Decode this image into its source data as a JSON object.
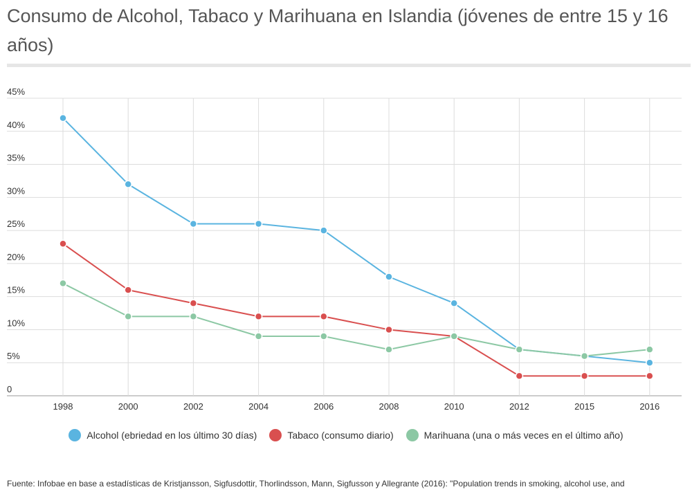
{
  "title": "Consumo de Alcohol, Tabaco y Marihuana en Islandia (jóvenes de entre 15 y 16 años)",
  "footer": "Fuente: Infobae en base a estadísticas de Kristjansson,  Sigfusdottir, Thorlindsson, Mann, Sigfusson y Allegrante (2016): \"Population trends in smoking, alcohol use, and",
  "chart_data": {
    "type": "line",
    "title": "Consumo de Alcohol, Tabaco y Marihuana en Islandia (jóvenes de entre 15 y 16 años)",
    "xlabel": "",
    "ylabel": "",
    "categories": [
      "1998",
      "2000",
      "2002",
      "2004",
      "2006",
      "2008",
      "2010",
      "2012",
      "2015",
      "2016"
    ],
    "y_ticks": [
      "0",
      "5%",
      "10%",
      "15%",
      "20%",
      "25%",
      "30%",
      "35%",
      "40%",
      "45%"
    ],
    "ylim": [
      0,
      45
    ],
    "grid": true,
    "legend": "bottom",
    "series": [
      {
        "name": "Alcohol (ebriedad en los último 30 días)",
        "color": "#5ab4e0",
        "values": [
          42,
          32,
          26,
          26,
          25,
          18,
          14,
          7,
          6,
          5
        ]
      },
      {
        "name": "Tabaco (consumo diario)",
        "color": "#d94f4f",
        "values": [
          23,
          16,
          14,
          12,
          12,
          10,
          9,
          3,
          3,
          3
        ]
      },
      {
        "name": "Marihuana (una o más veces en el último año)",
        "color": "#8cc8a4",
        "values": [
          17,
          12,
          12,
          9,
          9,
          7,
          9,
          7,
          6,
          7
        ]
      }
    ]
  }
}
